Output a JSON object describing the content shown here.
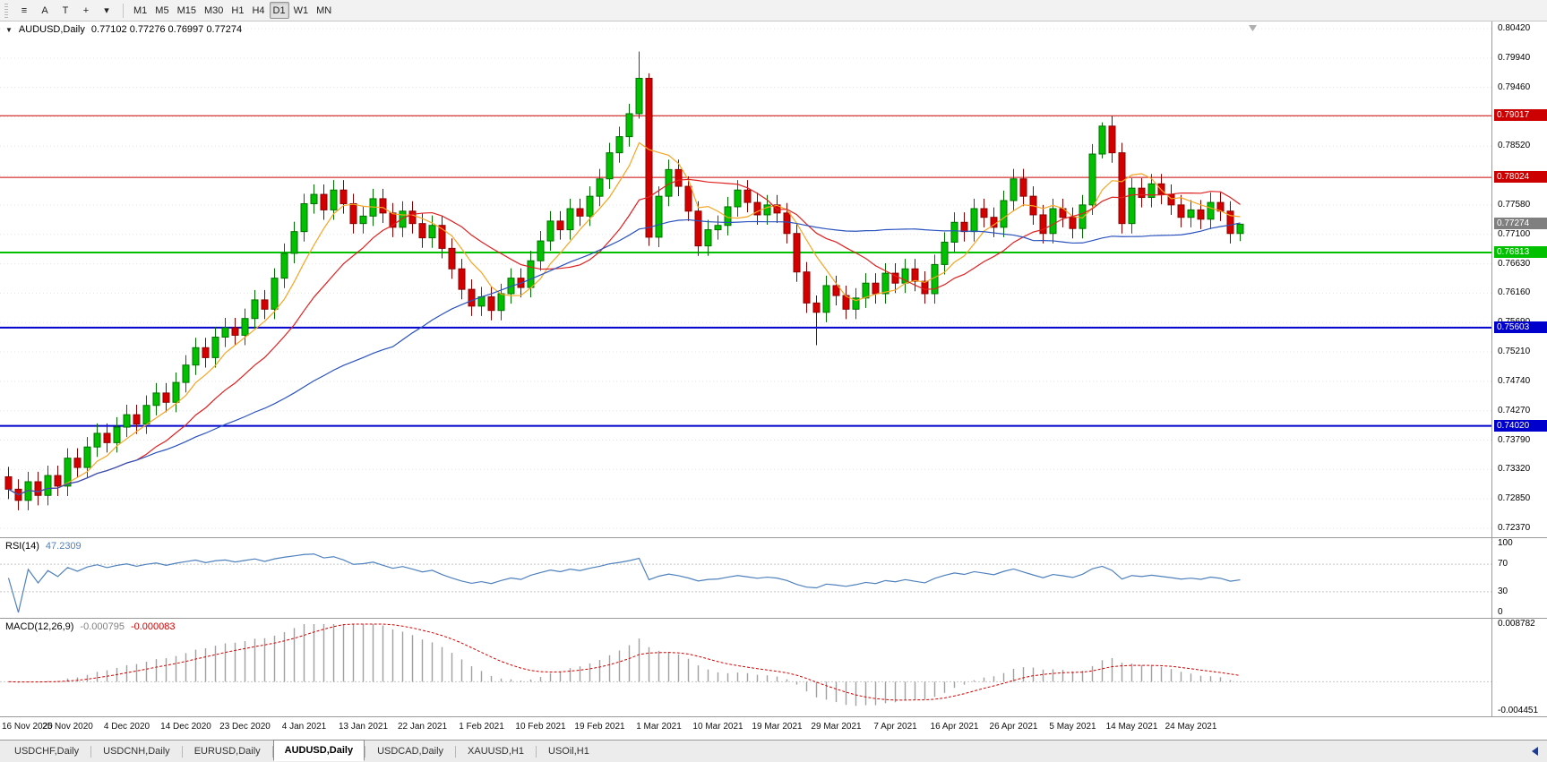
{
  "toolbar": {
    "tool_buttons": [
      {
        "name": "chart-bars-icon",
        "glyph": "≡"
      },
      {
        "name": "annotation-text-tool",
        "glyph": "A"
      },
      {
        "name": "text-tool",
        "glyph": "T"
      },
      {
        "name": "crosshair-tool",
        "glyph": "+"
      },
      {
        "name": "tools-dropdown",
        "glyph": "▾"
      }
    ],
    "timeframes": [
      "M1",
      "M5",
      "M15",
      "M30",
      "H1",
      "H4",
      "D1",
      "W1",
      "MN"
    ],
    "active_timeframe": "D1"
  },
  "chart_data": {
    "type": "candlestick",
    "main": {
      "type": "candlestick",
      "title": "AUDUSD,Daily",
      "ohlc_text": "0.77102 0.77276 0.76997 0.77274",
      "open": 0.77102,
      "high": 0.77276,
      "low": 0.76997,
      "close": 0.77274,
      "y_max": 0.8042,
      "y_min": 0.7237,
      "y_ticks": [
        "0.80420",
        "0.79940",
        "0.79460",
        "0.78980",
        "0.78520",
        "0.78040",
        "0.77580",
        "0.77100",
        "0.76630",
        "0.76160",
        "0.75690",
        "0.75210",
        "0.74740",
        "0.74270",
        "0.73790",
        "0.73320",
        "0.72850",
        "0.72370"
      ],
      "candles_per_label": 6,
      "first_open": 0.732,
      "wick": 0.0016,
      "closes": [
        0.73,
        0.7282,
        0.7312,
        0.729,
        0.7322,
        0.7305,
        0.735,
        0.7335,
        0.7368,
        0.739,
        0.7375,
        0.74,
        0.742,
        0.7405,
        0.7435,
        0.7455,
        0.744,
        0.7472,
        0.75,
        0.7528,
        0.7512,
        0.7545,
        0.756,
        0.7548,
        0.7575,
        0.7605,
        0.759,
        0.764,
        0.768,
        0.7715,
        0.776,
        0.7775,
        0.775,
        0.7782,
        0.776,
        0.7728,
        0.774,
        0.7768,
        0.7745,
        0.7722,
        0.7748,
        0.7728,
        0.7705,
        0.7725,
        0.7688,
        0.7655,
        0.7622,
        0.7595,
        0.761,
        0.7588,
        0.7615,
        0.764,
        0.7625,
        0.7668,
        0.77,
        0.7732,
        0.7718,
        0.7752,
        0.774,
        0.7772,
        0.78,
        0.7842,
        0.7868,
        0.7905,
        0.7962,
        0.7706,
        0.7772,
        0.7815,
        0.7788,
        0.7748,
        0.7692,
        0.7718,
        0.7725,
        0.7755,
        0.7782,
        0.7762,
        0.7742,
        0.7758,
        0.7745,
        0.7712,
        0.765,
        0.76,
        0.7585,
        0.7628,
        0.7612,
        0.759,
        0.7608,
        0.7632,
        0.7615,
        0.7648,
        0.7632,
        0.7655,
        0.7635,
        0.7615,
        0.7662,
        0.7698,
        0.773,
        0.7715,
        0.7752,
        0.7738,
        0.7722,
        0.7765,
        0.78,
        0.7772,
        0.7742,
        0.7712,
        0.7752,
        0.7738,
        0.772,
        0.7758,
        0.784,
        0.7885,
        0.7842,
        0.7728,
        0.7785,
        0.777,
        0.7792,
        0.7775,
        0.7758,
        0.7738,
        0.775,
        0.7735,
        0.7762,
        0.7748,
        0.7712,
        0.7727
      ],
      "wick_overrides": {
        "64": [
          0.8005,
          0.7897
        ],
        "65": [
          0.797,
          0.7692
        ],
        "82": [
          0.7612,
          0.7532
        ],
        "111": [
          0.7891,
          0.7833
        ],
        "125": [
          0.77276,
          0.76997
        ]
      },
      "up_color": {
        "fill": "#00C000",
        "stroke": "#007000"
      },
      "down_color": {
        "fill": "#D40000",
        "stroke": "#8B0000"
      },
      "moving_averages": [
        {
          "name": "fast-ma",
          "period": 6,
          "color": "#F5A623"
        },
        {
          "name": "medium-ma",
          "period": 14,
          "color": "#E02020"
        },
        {
          "name": "slow-ma",
          "period": 40,
          "color": "#2A52BE"
        }
      ],
      "horizontal_lines": [
        {
          "label": "0.79017",
          "value": 0.79017,
          "color": "#CC0000",
          "width": 1
        },
        {
          "label": "0.78024",
          "value": 0.78024,
          "color": "#CC0000",
          "width": 1
        },
        {
          "label": "0.76813",
          "value": 0.76813,
          "color": "#00C000",
          "width": 2
        },
        {
          "label": "0.75603",
          "value": 0.75603,
          "color": "#0000CC",
          "width": 2
        },
        {
          "label": "0.74020",
          "value": 0.7402,
          "color": "#0000CC",
          "width": 2
        }
      ],
      "current_price_label": {
        "text": "0.77274",
        "value": 0.77274,
        "bg": "#7F7F7F"
      }
    },
    "rsi": {
      "type": "line",
      "label": "RSI(14)",
      "value": "47.2309",
      "period": 14,
      "color": "#4F81BD",
      "range": [
        0,
        100
      ],
      "levels": [
        70,
        30
      ],
      "ticks": [
        {
          "v": 100,
          "t": "100"
        },
        {
          "v": 70,
          "t": "70"
        },
        {
          "v": 30,
          "t": "30"
        },
        {
          "v": 0,
          "t": "0"
        }
      ]
    },
    "macd": {
      "type": "histogram+line",
      "label": "MACD(12,26,9)",
      "main_value": "-0.000795",
      "signal_value": "-0.000083",
      "fast": 12,
      "slow": 26,
      "signal": 9,
      "hist_color": "#A0A0A0",
      "signal_color": "#D40000",
      "range": [
        -0.004451,
        0.008782
      ],
      "ticks": [
        {
          "v": 0.008782,
          "t": "0.008782"
        },
        {
          "v": -0.004451,
          "t": "-0.004451"
        }
      ]
    }
  },
  "time_axis": {
    "labels": [
      "16 Nov 2020",
      "25 Nov 2020",
      "4 Dec 2020",
      "14 Dec 2020",
      "23 Dec 2020",
      "4 Jan 2021",
      "13 Jan 2021",
      "22 Jan 2021",
      "1 Feb 2021",
      "10 Feb 2021",
      "19 Feb 2021",
      "1 Mar 2021",
      "10 Mar 2021",
      "19 Mar 2021",
      "29 Mar 2021",
      "7 Apr 2021",
      "16 Apr 2021",
      "26 Apr 2021",
      "5 May 2021",
      "14 May 2021",
      "24 May 2021"
    ]
  },
  "tabs": {
    "items": [
      "USDCHF,Daily",
      "USDCNH,Daily",
      "EURUSD,Daily",
      "AUDUSD,Daily",
      "USDCAD,Daily",
      "XAUUSD,H1",
      "USOil,H1"
    ],
    "active_index": 3
  },
  "icons": {
    "symbol_dropdown": "▼",
    "tab_scroll_left": "◄"
  }
}
